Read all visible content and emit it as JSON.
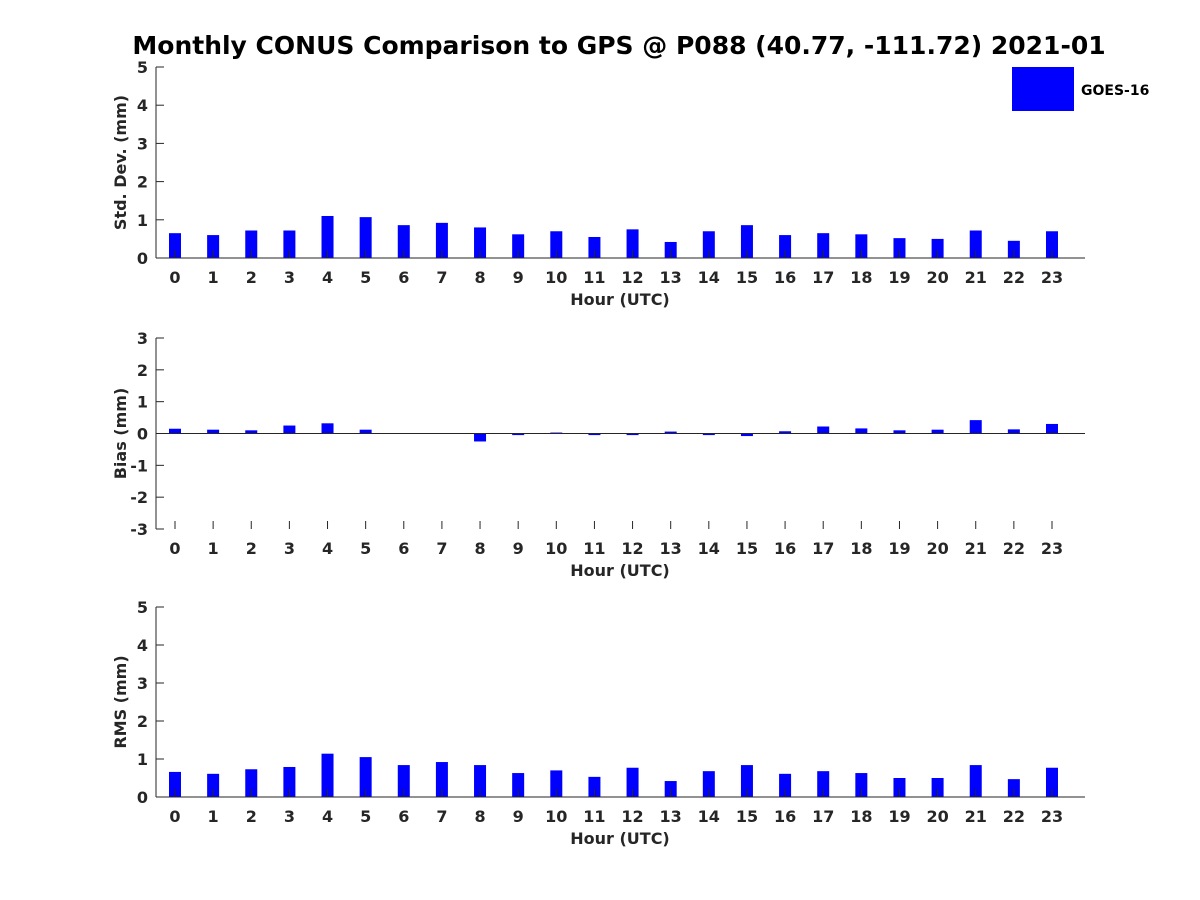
{
  "title": "Monthly CONUS Comparison to GPS @ P088 (40.77, -111.72) 2021-01",
  "legend": {
    "label": "GOES-16",
    "color": "#0000ff",
    "placement": "top-right"
  },
  "chart_data": [
    {
      "type": "bar",
      "name": "std_dev",
      "xlabel": "Hour (UTC)",
      "ylabel": "Std. Dev. (mm)",
      "ylim": [
        0,
        5
      ],
      "yticks": [
        0,
        1,
        2,
        3,
        4,
        5
      ],
      "categories": [
        0,
        1,
        2,
        3,
        4,
        5,
        6,
        7,
        8,
        9,
        10,
        11,
        12,
        13,
        14,
        15,
        16,
        17,
        18,
        19,
        20,
        21,
        22,
        23
      ],
      "series": [
        {
          "name": "GOES-16",
          "color": "#0000ff",
          "values": [
            0.65,
            0.6,
            0.72,
            0.72,
            1.1,
            1.07,
            0.86,
            0.92,
            0.8,
            0.62,
            0.7,
            0.55,
            0.75,
            0.42,
            0.7,
            0.86,
            0.6,
            0.65,
            0.62,
            0.52,
            0.5,
            0.72,
            0.45,
            0.7
          ]
        }
      ],
      "grid": false
    },
    {
      "type": "bar",
      "name": "bias",
      "xlabel": "Hour (UTC)",
      "ylabel": "Bias (mm)",
      "ylim": [
        -3,
        3
      ],
      "yticks": [
        -3,
        -2,
        -1,
        0,
        1,
        2,
        3
      ],
      "categories": [
        0,
        1,
        2,
        3,
        4,
        5,
        6,
        7,
        8,
        9,
        10,
        11,
        12,
        13,
        14,
        15,
        16,
        17,
        18,
        19,
        20,
        21,
        22,
        23
      ],
      "series": [
        {
          "name": "GOES-16",
          "color": "#0000ff",
          "values": [
            0.15,
            0.12,
            0.1,
            0.25,
            0.32,
            0.12,
            0.0,
            0.0,
            -0.25,
            -0.05,
            0.03,
            -0.05,
            -0.05,
            0.06,
            -0.05,
            -0.08,
            0.07,
            0.22,
            0.16,
            0.1,
            0.12,
            0.42,
            0.13,
            0.3
          ]
        }
      ],
      "grid": false
    },
    {
      "type": "bar",
      "name": "rms",
      "xlabel": "Hour (UTC)",
      "ylabel": "RMS (mm)",
      "ylim": [
        0,
        5
      ],
      "yticks": [
        0,
        1,
        2,
        3,
        4,
        5
      ],
      "categories": [
        0,
        1,
        2,
        3,
        4,
        5,
        6,
        7,
        8,
        9,
        10,
        11,
        12,
        13,
        14,
        15,
        16,
        17,
        18,
        19,
        20,
        21,
        22,
        23
      ],
      "series": [
        {
          "name": "GOES-16",
          "color": "#0000ff",
          "values": [
            0.66,
            0.61,
            0.73,
            0.79,
            1.14,
            1.05,
            0.84,
            0.92,
            0.84,
            0.63,
            0.7,
            0.53,
            0.77,
            0.42,
            0.68,
            0.84,
            0.61,
            0.68,
            0.63,
            0.5,
            0.5,
            0.84,
            0.47,
            0.77
          ]
        }
      ],
      "grid": false
    }
  ]
}
